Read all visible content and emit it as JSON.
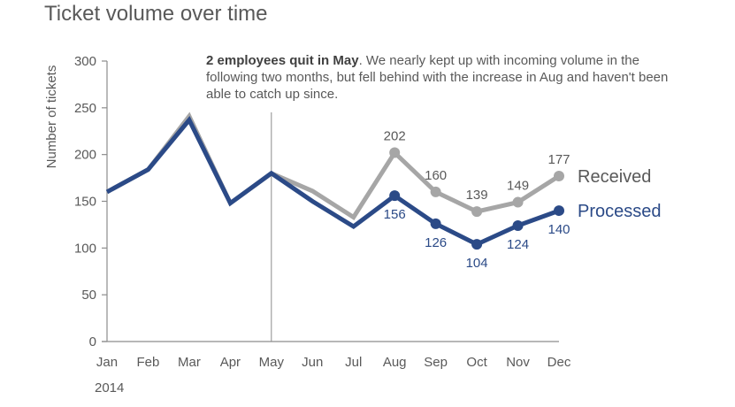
{
  "chart_data": {
    "type": "line",
    "title": "Ticket volume over time",
    "xlabel": "",
    "ylabel": "Number of tickets",
    "year_label": "2014",
    "categories": [
      "Jan",
      "Feb",
      "Mar",
      "Apr",
      "May",
      "Jun",
      "Jul",
      "Aug",
      "Sep",
      "Oct",
      "Nov",
      "Dec"
    ],
    "ylim": [
      0,
      300
    ],
    "yticks": [
      0,
      50,
      100,
      150,
      200,
      250,
      300
    ],
    "grid": false,
    "legend": "direct-labels-right",
    "annotation": {
      "bold": "2 employees quit in May",
      "text": ". We nearly kept up with incoming volume in the following two months, but fell behind with the increase in Aug and haven't been able to catch up since.",
      "marker_category": "May"
    },
    "series": [
      {
        "name": "Received",
        "color": "#a6a6a6",
        "values": [
          160,
          184,
          241,
          148,
          180,
          161,
          133,
          202,
          160,
          139,
          149,
          177
        ],
        "labeled_from": "Aug"
      },
      {
        "name": "Processed",
        "color": "#2b4a87",
        "values": [
          160,
          184,
          237,
          148,
          180,
          150,
          123,
          156,
          126,
          104,
          124,
          140
        ],
        "labeled_from": "Aug"
      }
    ]
  }
}
